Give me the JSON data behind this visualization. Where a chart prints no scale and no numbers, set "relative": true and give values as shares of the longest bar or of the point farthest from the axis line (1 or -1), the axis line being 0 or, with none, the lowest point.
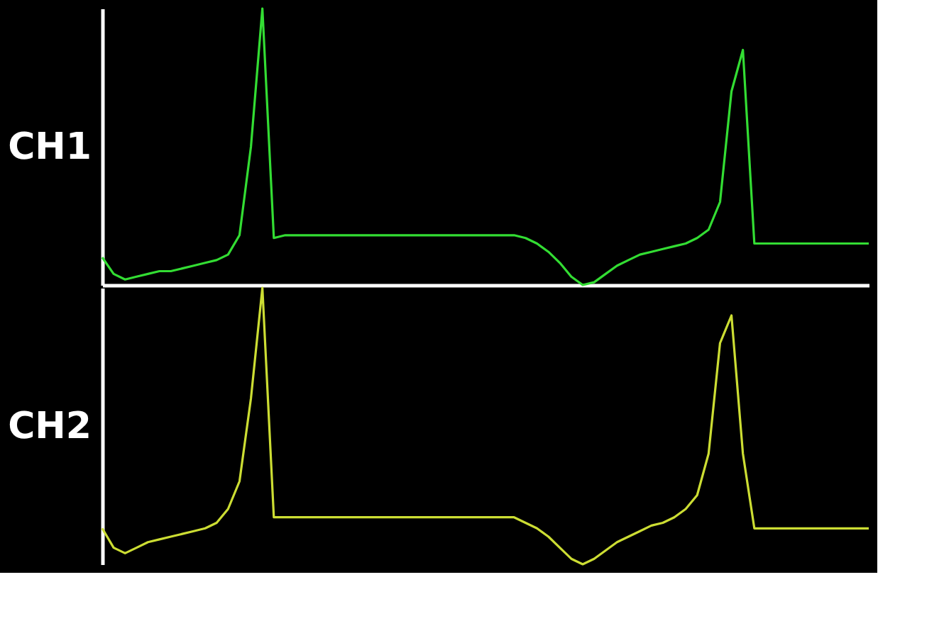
{
  "chart_data": [
    {
      "type": "line",
      "ylabel": "CH1",
      "relative": true,
      "categories": [
        null,
        null,
        null,
        null,
        null,
        null,
        null,
        null,
        null,
        null,
        null,
        null,
        null,
        null,
        null,
        null,
        null,
        null,
        null,
        null,
        null,
        null,
        null,
        null,
        null,
        null,
        null,
        null,
        null,
        null,
        null,
        null,
        null,
        null,
        null,
        null,
        null,
        null,
        null,
        null,
        null,
        null,
        null,
        null,
        null,
        null,
        null,
        null,
        null,
        null,
        null,
        null,
        null,
        null,
        null,
        null,
        null,
        null,
        null,
        null,
        null,
        null,
        null,
        null,
        null,
        null,
        null,
        null
      ],
      "series": [
        {
          "color": "#33dd33",
          "values": [
            0.1,
            0.04,
            0.02,
            0.03,
            0.04,
            0.05,
            0.05,
            0.06,
            0.07,
            0.08,
            0.09,
            0.11,
            0.18,
            0.5,
            1.0,
            0.17,
            0.18,
            0.18,
            0.18,
            0.18,
            0.18,
            0.18,
            0.18,
            0.18,
            0.18,
            0.18,
            0.18,
            0.18,
            0.18,
            0.18,
            0.18,
            0.18,
            0.18,
            0.18,
            0.18,
            0.18,
            0.18,
            0.17,
            0.15,
            0.12,
            0.08,
            0.03,
            0,
            0.01,
            0.04,
            0.07,
            0.09,
            0.11,
            0.12,
            0.13,
            0.14,
            0.15,
            0.17,
            0.2,
            0.3,
            0.7,
            0.85,
            0.15,
            0.15,
            0.15,
            0.15,
            0.15,
            0.15,
            0.15,
            0.15,
            0.15,
            0.15,
            0.15
          ]
        }
      ]
    },
    {
      "type": "line",
      "ylabel": "CH2",
      "relative": true,
      "categories": [
        null,
        null,
        null,
        null,
        null,
        null,
        null,
        null,
        null,
        null,
        null,
        null,
        null,
        null,
        null,
        null,
        null,
        null,
        null,
        null,
        null,
        null,
        null,
        null,
        null,
        null,
        null,
        null,
        null,
        null,
        null,
        null,
        null,
        null,
        null,
        null,
        null,
        null,
        null,
        null,
        null,
        null,
        null,
        null,
        null,
        null,
        null,
        null,
        null,
        null,
        null,
        null,
        null,
        null,
        null,
        null,
        null,
        null,
        null,
        null,
        null,
        null,
        null,
        null,
        null,
        null,
        null,
        null
      ],
      "series": [
        {
          "color": "#ccdd33",
          "values": [
            0.13,
            0.06,
            0.04,
            0.06,
            0.08,
            0.09,
            0.1,
            0.11,
            0.12,
            0.13,
            0.15,
            0.2,
            0.3,
            0.6,
            1.0,
            0.17,
            0.17,
            0.17,
            0.17,
            0.17,
            0.17,
            0.17,
            0.17,
            0.17,
            0.17,
            0.17,
            0.17,
            0.17,
            0.17,
            0.17,
            0.17,
            0.17,
            0.17,
            0.17,
            0.17,
            0.17,
            0.17,
            0.15,
            0.13,
            0.1,
            0.06,
            0.02,
            0,
            0.02,
            0.05,
            0.08,
            0.1,
            0.12,
            0.14,
            0.15,
            0.17,
            0.2,
            0.25,
            0.4,
            0.8,
            0.9,
            0.4,
            0.13,
            0.13,
            0.13,
            0.13,
            0.13,
            0.13,
            0.13,
            0.13,
            0.13,
            0.13,
            0.13
          ]
        }
      ]
    }
  ]
}
